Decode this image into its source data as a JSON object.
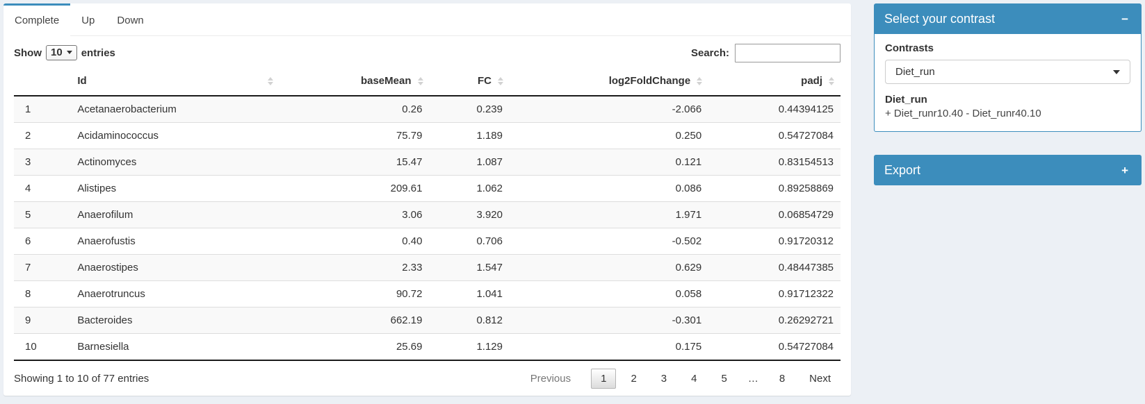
{
  "tabs": [
    {
      "label": "Complete",
      "active": true
    },
    {
      "label": "Up",
      "active": false
    },
    {
      "label": "Down",
      "active": false
    }
  ],
  "length_control": {
    "prefix": "Show",
    "value": "10",
    "suffix": "entries"
  },
  "search": {
    "label": "Search:",
    "value": ""
  },
  "table": {
    "columns": [
      {
        "label": "",
        "key": "row-index",
        "align": "left",
        "sortable": false
      },
      {
        "label": "Id",
        "key": "id",
        "align": "left",
        "sortable": true
      },
      {
        "label": "baseMean",
        "key": "basemean",
        "align": "right",
        "sortable": true
      },
      {
        "label": "FC",
        "key": "fc",
        "align": "right",
        "sortable": true
      },
      {
        "label": "log2FoldChange",
        "key": "log2foldchange",
        "align": "right",
        "sortable": true
      },
      {
        "label": "padj",
        "key": "padj",
        "align": "right",
        "sortable": true
      }
    ],
    "rows": [
      [
        "1",
        "Acetanaerobacterium",
        "0.26",
        "0.239",
        "-2.066",
        "0.44394125"
      ],
      [
        "2",
        "Acidaminococcus",
        "75.79",
        "1.189",
        "0.250",
        "0.54727084"
      ],
      [
        "3",
        "Actinomyces",
        "15.47",
        "1.087",
        "0.121",
        "0.83154513"
      ],
      [
        "4",
        "Alistipes",
        "209.61",
        "1.062",
        "0.086",
        "0.89258869"
      ],
      [
        "5",
        "Anaerofilum",
        "3.06",
        "3.920",
        "1.971",
        "0.06854729"
      ],
      [
        "6",
        "Anaerofustis",
        "0.40",
        "0.706",
        "-0.502",
        "0.91720312"
      ],
      [
        "7",
        "Anaerostipes",
        "2.33",
        "1.547",
        "0.629",
        "0.48447385"
      ],
      [
        "8",
        "Anaerotruncus",
        "90.72",
        "1.041",
        "0.058",
        "0.91712322"
      ],
      [
        "9",
        "Bacteroides",
        "662.19",
        "0.812",
        "-0.301",
        "0.26292721"
      ],
      [
        "10",
        "Barnesiella",
        "25.69",
        "1.129",
        "0.175",
        "0.54727084"
      ]
    ]
  },
  "info": "Showing 1 to 10 of 77 entries",
  "pagination": {
    "previous": "Previous",
    "pages": [
      "1",
      "2",
      "3",
      "4",
      "5",
      "…",
      "8"
    ],
    "current": "1",
    "next": "Next"
  },
  "contrast_panel": {
    "title": "Select your contrast",
    "collapse_icon": "−",
    "label": "Contrasts",
    "selected": "Diet_run",
    "detail_title": "Diet_run",
    "detail_text": "+ Diet_runr10.40 - Diet_runr40.10"
  },
  "export_panel": {
    "title": "Export",
    "collapse_icon": "+"
  },
  "colors": {
    "accent": "#3c8dbc",
    "page_bg": "#ecf0f5"
  }
}
